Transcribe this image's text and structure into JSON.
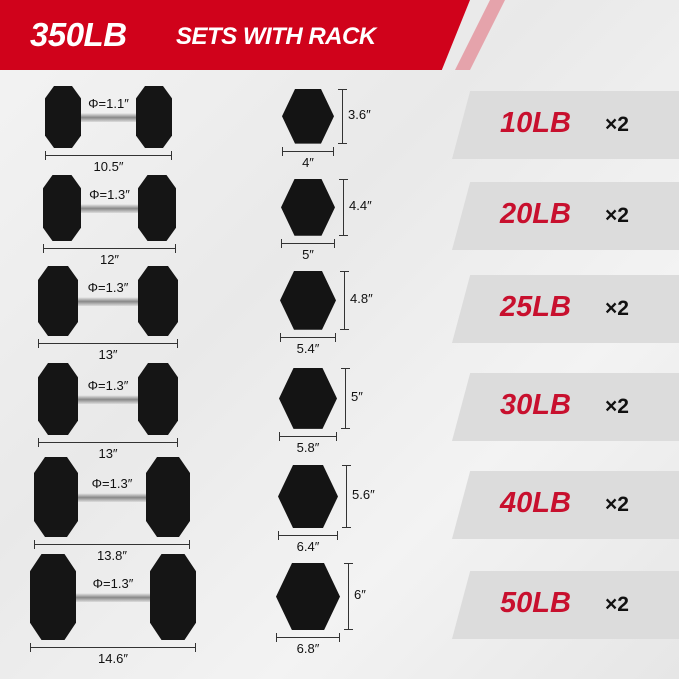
{
  "header": {
    "total": "350LB",
    "subtitle": "SETS WITH RACK"
  },
  "colors": {
    "accent": "#d0021b",
    "weight_text": "#c8102e",
    "band": "#dcdcdc"
  },
  "rows": [
    {
      "diameter": "Φ=1.1″",
      "length": "10.5″",
      "hex_height": "3.6″",
      "hex_width": "4″",
      "weight": "10LB",
      "qty": "×2"
    },
    {
      "diameter": "Φ=1.3″",
      "length": "12″",
      "hex_height": "4.4″",
      "hex_width": "5″",
      "weight": "20LB",
      "qty": "×2"
    },
    {
      "diameter": "Φ=1.3″",
      "length": "13″",
      "hex_height": "4.8″",
      "hex_width": "5.4″",
      "weight": "25LB",
      "qty": "×2"
    },
    {
      "diameter": "Φ=1.3″",
      "length": "13″",
      "hex_height": "5″",
      "hex_width": "5.8″",
      "weight": "30LB",
      "qty": "×2"
    },
    {
      "diameter": "Φ=1.3″",
      "length": "13.8″",
      "hex_height": "5.6″",
      "hex_width": "6.4″",
      "weight": "40LB",
      "qty": "×2"
    },
    {
      "diameter": "Φ=1.3″",
      "length": "14.6″",
      "hex_height": "6″",
      "hex_width": "6.8″",
      "weight": "50LB",
      "qty": "×2"
    }
  ]
}
